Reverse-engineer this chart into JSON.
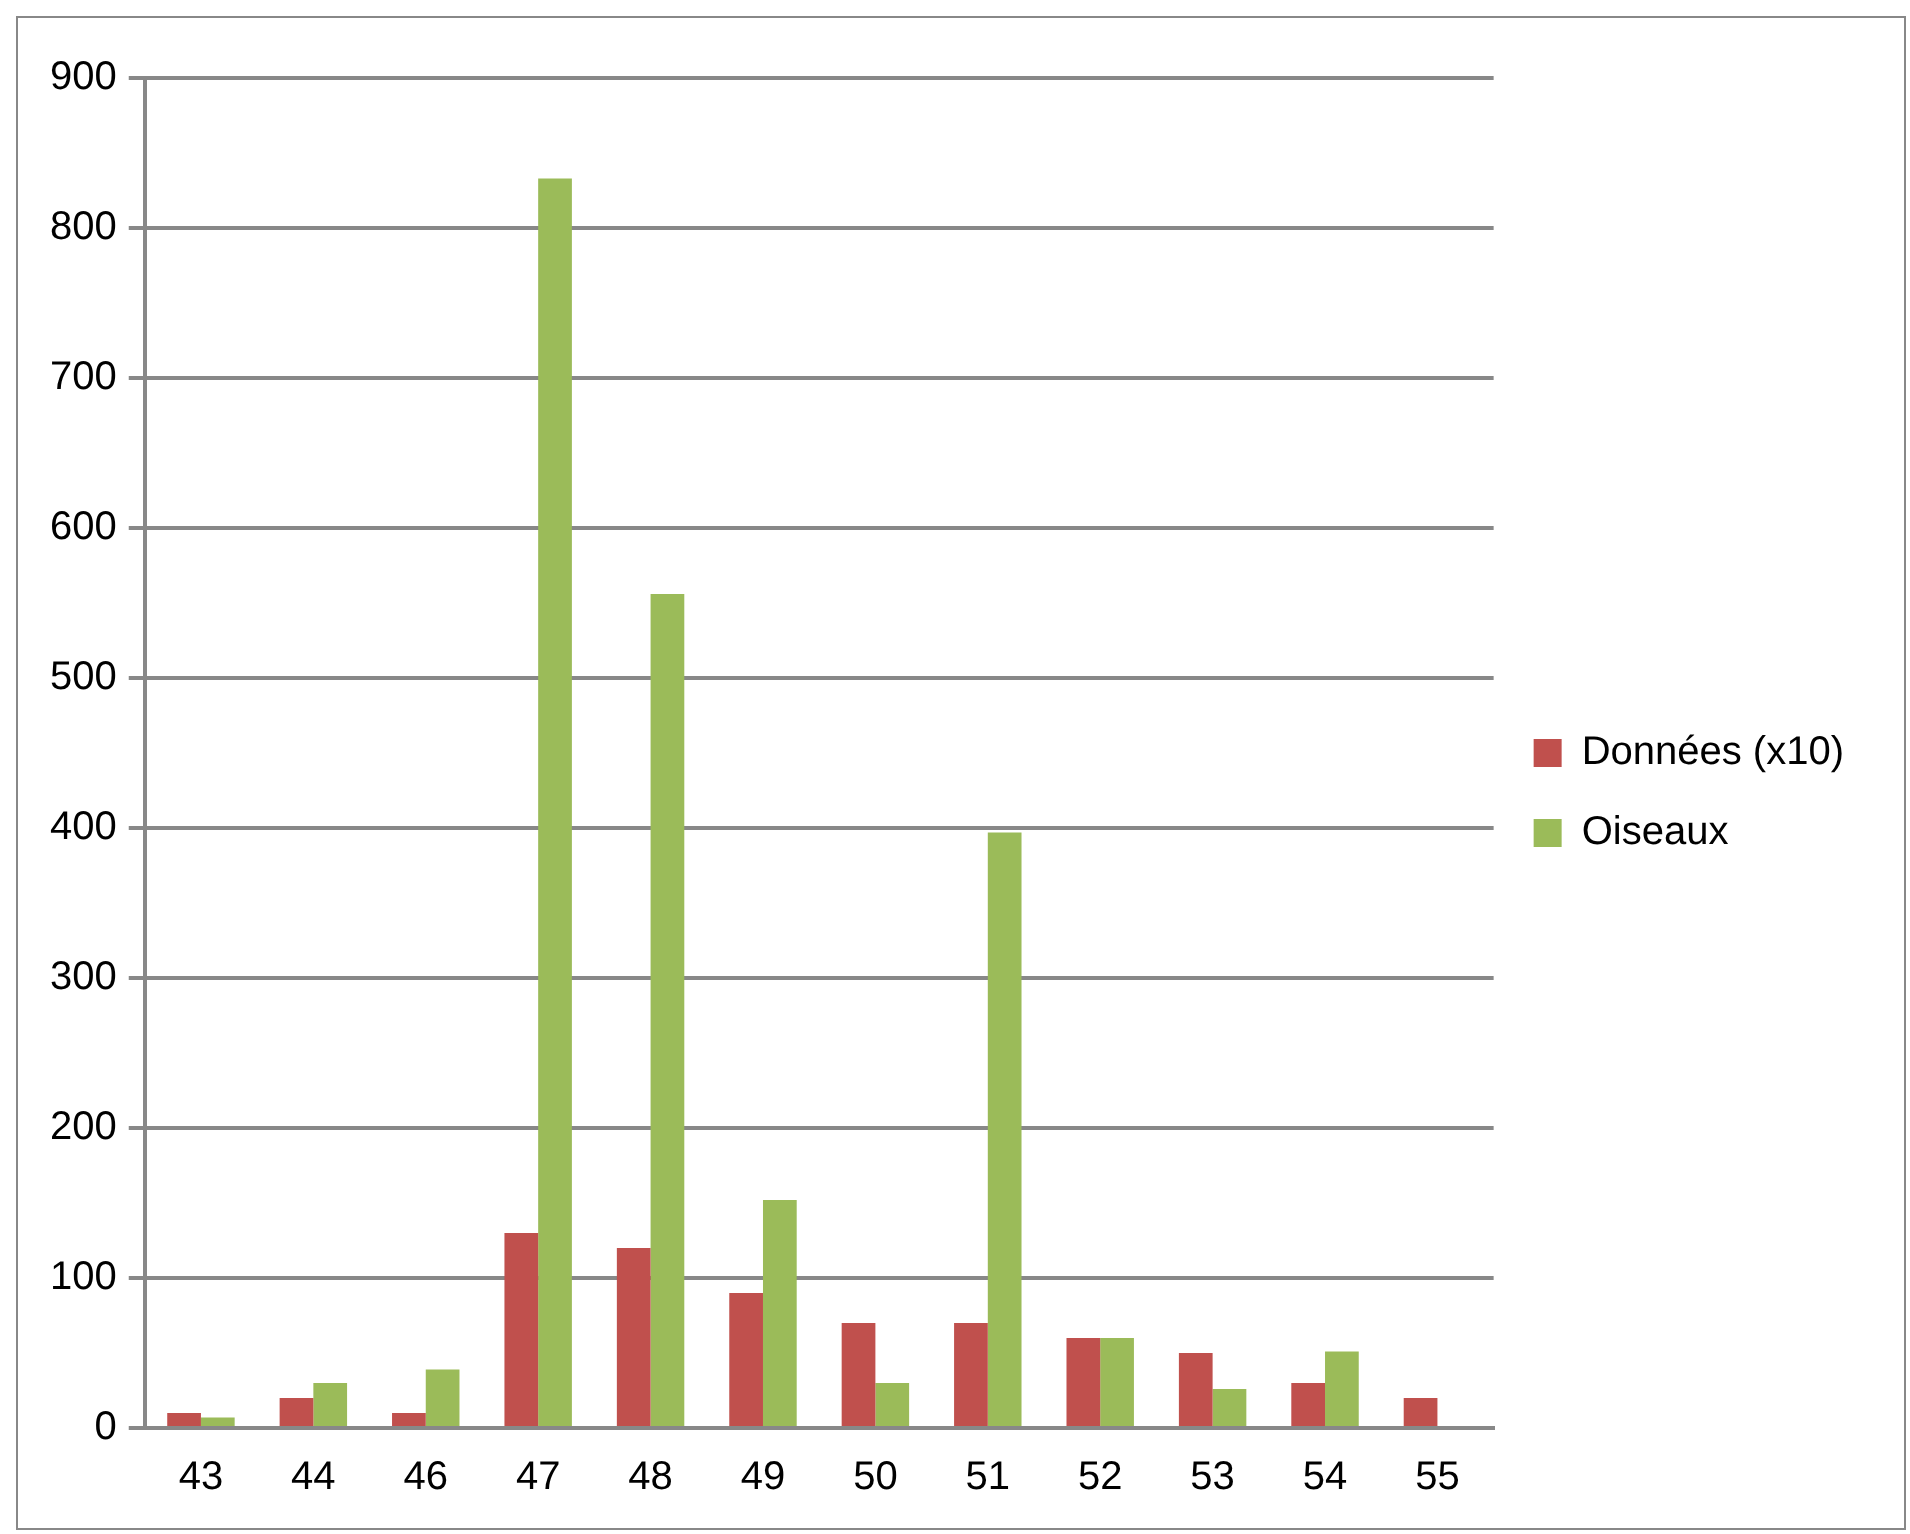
{
  "chart_data": {
    "type": "bar",
    "categories": [
      "43",
      "44",
      "46",
      "47",
      "48",
      "49",
      "50",
      "51",
      "52",
      "53",
      "54",
      "55"
    ],
    "series": [
      {
        "name": "Données (x10)",
        "color": "#c0504d",
        "values": [
          10,
          20,
          10,
          130,
          120,
          90,
          70,
          70,
          60,
          50,
          30,
          20
        ]
      },
      {
        "name": "Oiseaux",
        "color": "#9bbb59",
        "values": [
          7,
          30,
          39,
          833,
          556,
          152,
          30,
          397,
          60,
          26,
          51,
          0
        ]
      }
    ],
    "ylim": [
      0,
      900
    ],
    "yticks": [
      0,
      100,
      200,
      300,
      400,
      500,
      600,
      700,
      800,
      900
    ],
    "grid": "y",
    "legend": "right"
  }
}
